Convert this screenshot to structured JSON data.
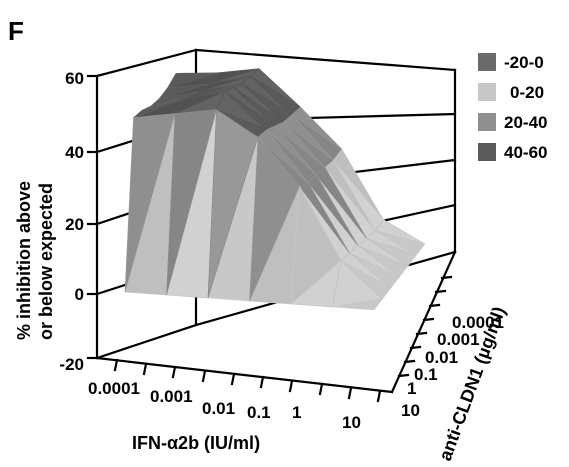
{
  "panel_label": "F",
  "colors": {
    "band_neg20_0": "#6a6a6a",
    "band_0_20": "#c8c8c8",
    "band_20_40": "#8f8f8f",
    "band_40_60": "#5a5a5a",
    "frame": "#000000"
  },
  "chart_data": {
    "type": "surface",
    "title": "",
    "zlabel_lines": [
      "% inhibition above",
      "or below expected"
    ],
    "xlabel": "IFN-α2b (IU/ml)",
    "ylabel": "anti-CLDN1 (µg/ml)",
    "x_ticks": [
      "0.0001",
      "0.001",
      "0.01",
      "0.1",
      "1",
      "10"
    ],
    "y_ticks": [
      "0.0001",
      "0.001",
      "0.01",
      "0.1",
      "1",
      "10"
    ],
    "z_ticks": [
      "-20",
      "0",
      "20",
      "40",
      "60"
    ],
    "zlim": [
      -20,
      60
    ],
    "legend": {
      "placement": "top-right",
      "entries": [
        {
          "label": "-20-0",
          "color": "#6a6a6a"
        },
        {
          "label": "0-20",
          "color": "#c8c8c8"
        },
        {
          "label": "20-40",
          "color": "#8f8f8f"
        },
        {
          "label": "40-60",
          "color": "#5a5a5a"
        }
      ]
    },
    "z_values": [
      [
        0,
        46,
        45,
        43,
        42,
        42,
        43
      ],
      [
        0,
        48,
        49,
        47,
        45,
        44,
        44
      ],
      [
        0,
        50,
        52,
        50,
        48,
        47,
        46
      ],
      [
        0,
        43,
        42,
        40,
        38,
        37,
        36
      ],
      [
        0,
        30,
        28,
        27,
        26,
        25,
        25
      ],
      [
        0,
        10,
        9,
        8,
        7,
        6,
        6
      ],
      [
        0,
        0,
        0,
        0,
        0,
        0,
        0
      ]
    ]
  }
}
